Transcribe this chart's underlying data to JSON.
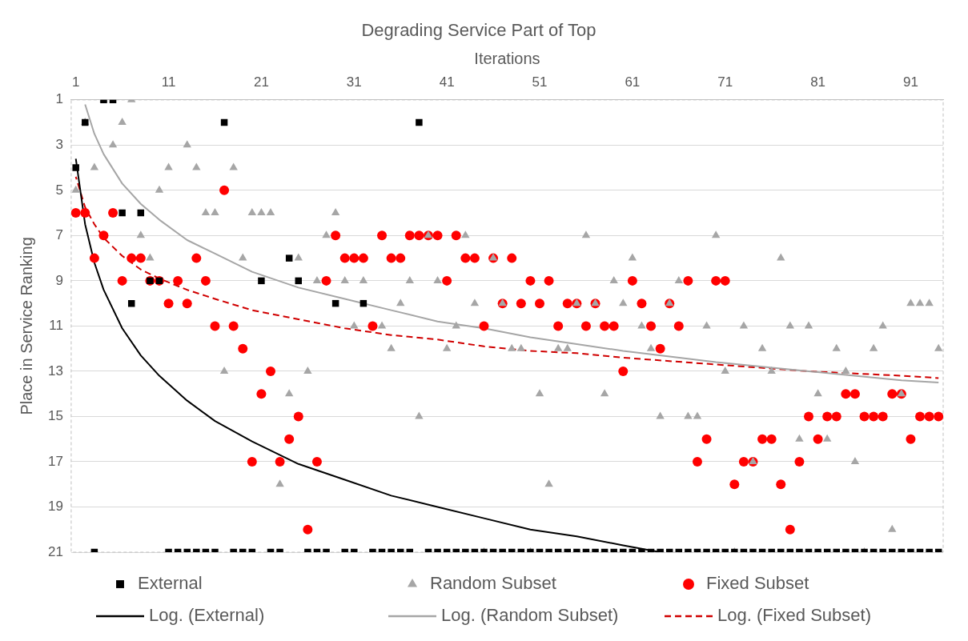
{
  "chart_data": {
    "type": "scatter",
    "title": "Degrading Service Part of Top",
    "xlabel": "Iterations",
    "ylabel": "Place in Service Ranking",
    "x": [
      1,
      2,
      3,
      4,
      5,
      6,
      7,
      8,
      9,
      10,
      11,
      12,
      13,
      14,
      15,
      16,
      17,
      18,
      19,
      20,
      21,
      22,
      23,
      24,
      25,
      26,
      27,
      28,
      29,
      30,
      31,
      32,
      33,
      34,
      35,
      36,
      37,
      38,
      39,
      40,
      41,
      42,
      43,
      44,
      45,
      46,
      47,
      48,
      49,
      50,
      51,
      52,
      53,
      54,
      55,
      56,
      57,
      58,
      59,
      60,
      61,
      62,
      63,
      64,
      65,
      66,
      67,
      68,
      69,
      70,
      71,
      72,
      73,
      74,
      75,
      76,
      77,
      78,
      79,
      80,
      81,
      82,
      83,
      84,
      85,
      86,
      87,
      88,
      89,
      90,
      91,
      92,
      93,
      94
    ],
    "xlim": [
      0.5,
      94.5
    ],
    "xticks": [
      1,
      11,
      21,
      31,
      41,
      51,
      61,
      71,
      81,
      91
    ],
    "ylim": [
      21,
      1
    ],
    "yticks": [
      1,
      3,
      5,
      7,
      9,
      11,
      13,
      15,
      17,
      19,
      21
    ],
    "grid": "y",
    "legend": "bottom",
    "series": [
      {
        "name": "External",
        "type": "scatter",
        "marker": "square",
        "color": "#000000",
        "values": [
          4,
          2,
          21,
          1,
          1,
          6,
          10,
          6,
          9,
          9,
          21,
          21,
          21,
          21,
          21,
          21,
          2,
          21,
          21,
          21,
          9,
          21,
          21,
          8,
          9,
          21,
          21,
          21,
          10,
          21,
          21,
          10,
          21,
          21,
          21,
          21,
          21,
          2,
          21,
          21,
          21,
          21,
          21,
          21,
          21,
          21,
          21,
          21,
          21,
          21,
          21,
          21,
          21,
          21,
          21,
          21,
          21,
          21,
          21,
          21,
          21,
          21,
          21,
          21,
          21,
          21,
          21,
          21,
          21,
          21,
          21,
          21,
          21,
          21,
          21,
          21,
          21,
          21,
          21,
          21,
          21,
          21,
          21,
          21,
          21,
          21,
          21,
          21,
          21,
          21,
          21,
          21,
          21,
          21
        ]
      },
      {
        "name": "Random Subset",
        "type": "scatter",
        "marker": "triangle",
        "color": "#a6a6a6",
        "values": [
          5,
          2,
          4,
          1,
          3,
          2,
          1,
          7,
          8,
          5,
          4,
          null,
          3,
          4,
          6,
          6,
          13,
          4,
          8,
          6,
          6,
          6,
          18,
          14,
          8,
          13,
          9,
          7,
          6,
          9,
          11,
          9,
          null,
          11,
          12,
          10,
          9,
          15,
          7,
          9,
          12,
          11,
          7,
          10,
          21,
          8,
          10,
          12,
          12,
          21,
          14,
          18,
          12,
          12,
          10,
          7,
          10,
          14,
          9,
          10,
          8,
          11,
          12,
          15,
          10,
          9,
          15,
          15,
          11,
          7,
          13,
          21,
          11,
          17,
          12,
          13,
          8,
          11,
          16,
          11,
          14,
          16,
          12,
          13,
          17,
          21,
          12,
          11,
          20,
          14,
          10,
          10,
          10,
          12
        ]
      },
      {
        "name": "Fixed Subset",
        "type": "scatter",
        "marker": "circle",
        "color": "#ff0000",
        "values": [
          6,
          6,
          8,
          7,
          6,
          9,
          8,
          8,
          9,
          9,
          10,
          9,
          10,
          8,
          9,
          11,
          5,
          11,
          12,
          17,
          14,
          13,
          17,
          16,
          15,
          20,
          17,
          9,
          7,
          8,
          8,
          8,
          11,
          7,
          8,
          8,
          7,
          7,
          7,
          7,
          9,
          7,
          8,
          8,
          11,
          8,
          10,
          8,
          10,
          9,
          10,
          9,
          11,
          10,
          10,
          11,
          10,
          11,
          11,
          13,
          9,
          10,
          11,
          12,
          10,
          11,
          9,
          17,
          16,
          9,
          9,
          18,
          17,
          17,
          16,
          16,
          18,
          20,
          17,
          15,
          16,
          15,
          15,
          14,
          14,
          15,
          15,
          15,
          14,
          14,
          16,
          15,
          15,
          15
        ]
      },
      {
        "name": "Log. (External)",
        "type": "line",
        "marker": "none",
        "line_style": "solid",
        "color": "#000000",
        "x": [
          1,
          2,
          3,
          4,
          6,
          8,
          10,
          13,
          16,
          20,
          25,
          30,
          35,
          40,
          45,
          50,
          55,
          60,
          64
        ],
        "values": [
          3.6,
          6.5,
          8.2,
          9.4,
          11.1,
          12.3,
          13.2,
          14.3,
          15.2,
          16.1,
          17.1,
          17.8,
          18.5,
          19.0,
          19.5,
          20.0,
          20.3,
          20.7,
          21.0
        ]
      },
      {
        "name": "Log. (Random Subset)",
        "type": "line",
        "marker": "none",
        "line_style": "solid",
        "color": "#a6a6a6",
        "x": [
          2,
          3,
          4,
          6,
          8,
          10,
          13,
          16,
          20,
          25,
          30,
          35,
          40,
          45,
          50,
          55,
          60,
          70,
          80,
          90,
          94
        ],
        "values": [
          1.2,
          2.5,
          3.4,
          4.7,
          5.6,
          6.3,
          7.2,
          7.8,
          8.6,
          9.3,
          9.8,
          10.3,
          10.8,
          11.1,
          11.5,
          11.8,
          12.1,
          12.6,
          13.0,
          13.4,
          13.5
        ]
      },
      {
        "name": "Log. (Fixed Subset)",
        "type": "line",
        "marker": "none",
        "line_style": "dashed",
        "color": "#d00000",
        "x": [
          1,
          2,
          3,
          4,
          6,
          8,
          10,
          13,
          16,
          20,
          25,
          30,
          35,
          40,
          45,
          50,
          55,
          60,
          70,
          80,
          90,
          94
        ],
        "values": [
          4.4,
          5.75,
          6.5,
          7.1,
          7.9,
          8.5,
          8.9,
          9.4,
          9.8,
          10.3,
          10.7,
          11.1,
          11.4,
          11.6,
          11.9,
          12.1,
          12.2,
          12.4,
          12.7,
          13.0,
          13.2,
          13.3
        ]
      }
    ]
  }
}
